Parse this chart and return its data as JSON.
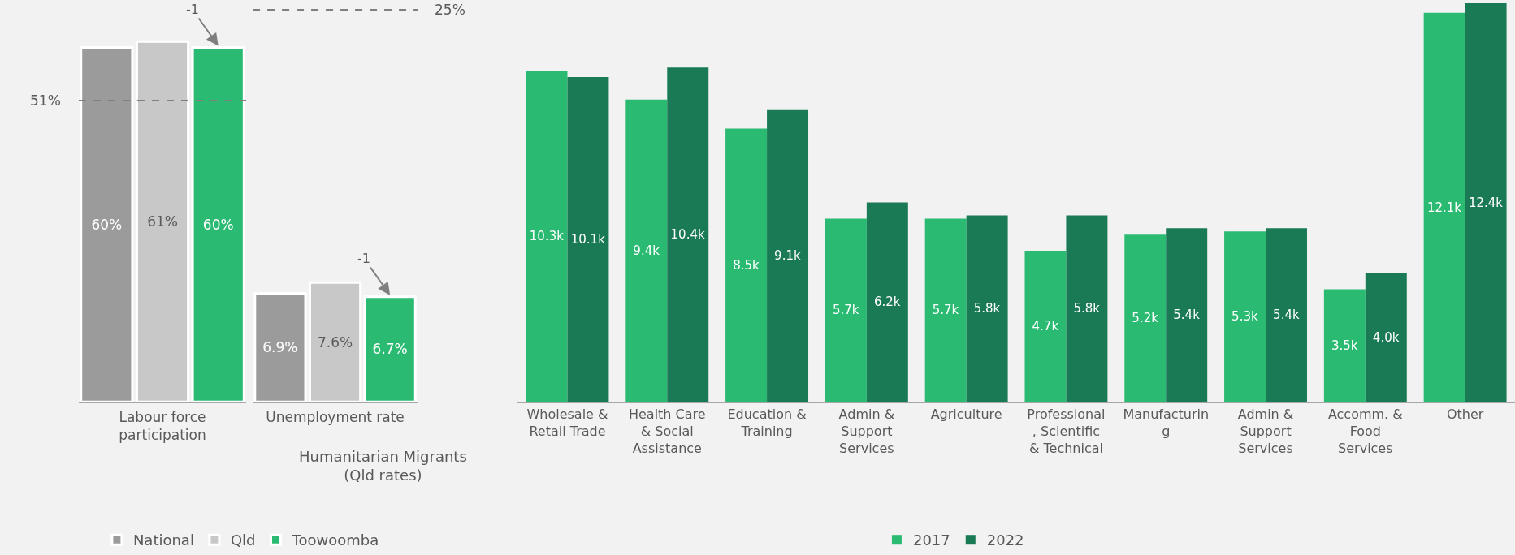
{
  "chart_data": [
    {
      "type": "bar",
      "xlabel": "Labour force participation",
      "categories": [
        null,
        null,
        null
      ],
      "stacked": true,
      "tick_labels": false,
      "data_labels": true,
      "legend": "bottom",
      "series": [
        {
          "name": "National",
          "color": "#9b9b9b",
          "values": [
            60,
            null,
            null
          ],
          "value_labels": [
            "60%",
            null,
            null
          ]
        },
        {
          "name": "Qld",
          "color": "#c8c8c8",
          "values": [
            null,
            61,
            null
          ],
          "value_labels": [
            null,
            "61%",
            null
          ]
        },
        {
          "name": "Toowoomba",
          "color": "#2bba72",
          "values": [
            null,
            null,
            60
          ],
          "value_labels": [
            null,
            null,
            "60%"
          ]
        }
      ],
      "ref_lines": [
        {
          "axis": "y",
          "value": 51,
          "label": "51%",
          "color": "#7f7f7f",
          "line_style": "dashed"
        }
      ],
      "annotations": [
        "-1",
        "Humanitarian Migrants\n(Qld rates)"
      ]
    },
    {
      "type": "bar",
      "xlabel": "Unemployment rate",
      "categories": [
        null,
        null,
        null
      ],
      "stacked": true,
      "tick_labels": false,
      "data_labels": true,
      "series": [
        {
          "color": "#9b9b9b",
          "values": [
            6.9,
            null,
            null
          ],
          "value_labels": [
            "6.9%",
            null,
            null
          ]
        },
        {
          "color": "#c8c8c8",
          "values": [
            null,
            7.6,
            null
          ],
          "value_labels": [
            null,
            "7.6%",
            null
          ]
        },
        {
          "color": "#2bba72",
          "values": [
            null,
            null,
            6.7
          ],
          "value_labels": [
            null,
            null,
            "6.7%"
          ]
        }
      ],
      "ref_lines": [
        {
          "axis": "y",
          "value": 25,
          "label": "25%",
          "color": "#7f7f7f",
          "line_style": "dashed"
        }
      ],
      "annotations": [
        "-1"
      ]
    },
    {
      "type": "bar",
      "categories": [
        "Wholesale & Retail Trade",
        "Health Care & Social Assistance",
        "Education & Training",
        "Admin & Support Services",
        "Agriculture",
        "Professional, Scientific & Technical",
        "Manufacturing",
        "Admin & Support Services",
        "Accomm. & Food Services",
        "Other"
      ],
      "ylim": [
        0,
        12.5
      ],
      "tick_labels": "x",
      "data_labels": true,
      "legend": "bottom",
      "series": [
        {
          "name": "2017",
          "color": "#2bba72",
          "values": [
            10.3,
            9.4,
            8.5,
            5.7,
            5.7,
            4.7,
            5.2,
            5.3,
            3.5,
            12.1
          ],
          "value_labels": [
            "10.3k",
            "9.4k",
            "8.5k",
            "5.7k",
            "5.7k",
            "4.7k",
            "5.2k",
            "5.3k",
            "3.5k",
            "12.1k"
          ]
        },
        {
          "name": "2022",
          "color": "#1a7a55",
          "values": [
            10.1,
            10.4,
            9.1,
            6.2,
            5.8,
            5.8,
            5.4,
            5.4,
            4.0,
            12.4
          ],
          "value_labels": [
            "10.1k",
            "10.4k",
            "9.1k",
            "6.2k",
            "5.8k",
            "5.8k",
            "5.4k",
            "5.4k",
            "4.0k",
            "12.4k"
          ]
        }
      ]
    }
  ]
}
